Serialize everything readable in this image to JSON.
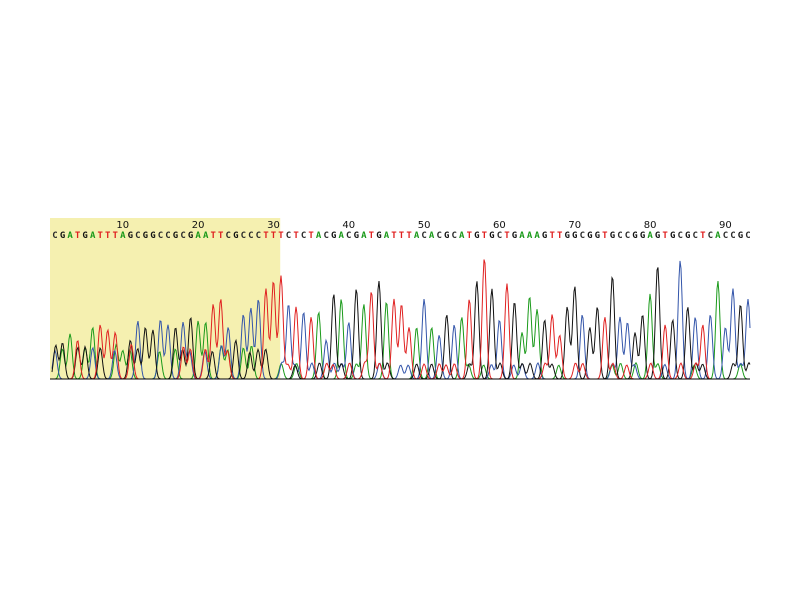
{
  "chart_data": {
    "type": "line",
    "title": "",
    "xlabel": "",
    "ylabel": "",
    "x_range": [
      1,
      94
    ],
    "tick_labels": [
      "10",
      "20",
      "30",
      "40",
      "50",
      "60",
      "70",
      "80",
      "90"
    ],
    "tick_positions": [
      10,
      20,
      30,
      40,
      50,
      60,
      70,
      80,
      90
    ],
    "sequence": "CGATGATTTAGCGGCCGCGAATTCGCCCTTTCTCTACGACGATGATTTACACGCATGTGCTGAAAGTTGGCGGTGCCGGAGTGCGCTCACCGC",
    "highlight_range": [
      1,
      30
    ],
    "highlight_color": "#f5f0b0",
    "base_colors": {
      "A": "#1a9a1a",
      "C": "#3355aa",
      "G": "#111111",
      "T": "#e02020"
    },
    "label_colors": {
      "A": "#1a9a1a",
      "C": "#2a2a2a",
      "G": "#111111",
      "T": "#e02020"
    },
    "peak_heights": [
      0.22,
      0.28,
      0.35,
      0.3,
      0.25,
      0.4,
      0.42,
      0.38,
      0.36,
      0.22,
      0.3,
      0.45,
      0.4,
      0.38,
      0.46,
      0.42,
      0.4,
      0.44,
      0.48,
      0.45,
      0.44,
      0.58,
      0.62,
      0.4,
      0.3,
      0.5,
      0.55,
      0.62,
      0.7,
      0.76,
      0.8,
      0.58,
      0.56,
      0.52,
      0.48,
      0.52,
      0.3,
      0.66,
      0.62,
      0.44,
      0.7,
      0.58,
      0.68,
      0.76,
      0.6,
      0.62,
      0.58,
      0.4,
      0.4,
      0.62,
      0.4,
      0.34,
      0.5,
      0.42,
      0.48,
      0.62,
      0.76,
      0.94,
      0.7,
      0.46,
      0.74,
      0.6,
      0.36,
      0.64,
      0.54,
      0.46,
      0.5,
      0.34,
      0.56,
      0.72,
      0.5,
      0.4,
      0.56,
      0.48,
      0.8,
      0.48,
      0.44,
      0.36,
      0.5,
      0.66,
      0.88,
      0.42,
      0.46,
      0.92,
      0.56,
      0.48,
      0.42,
      0.5,
      0.76,
      0.4,
      0.7,
      0.58,
      0.62,
      0.5
    ],
    "background_noise": true,
    "grid": false
  }
}
